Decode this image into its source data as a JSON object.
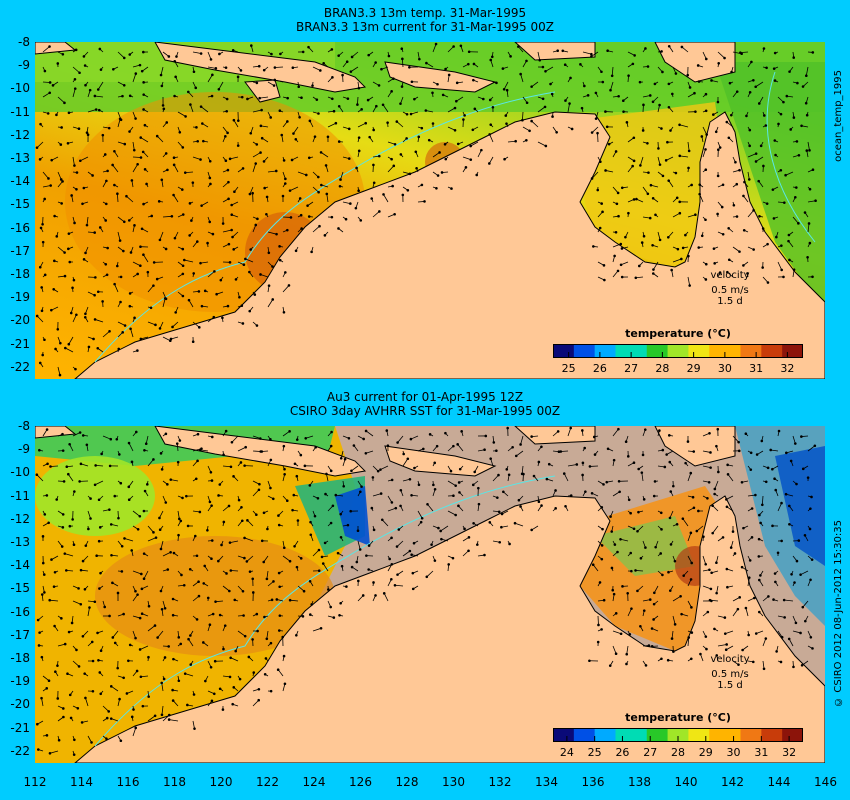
{
  "top_panel": {
    "title_line1": "BRAN3.3 13m temp. 31-Mar-1995",
    "title_line2": "BRAN3.3 13m current for 31-Mar-1995 00Z",
    "side_label": "ocean_temp_1995",
    "colorbar": {
      "title": "temperature (°C)",
      "ticks": [
        "25",
        "26",
        "27",
        "28",
        "29",
        "30",
        "31",
        "32"
      ]
    },
    "velocity": {
      "label": "velocity",
      "speed": "0.5 m/s",
      "time": "1.5 d"
    }
  },
  "bottom_panel": {
    "title_line1": "Au3 current for 01-Apr-1995 12Z",
    "title_line2": "CSIRO 3day AVHRR SST for 31-Mar-1995 00Z",
    "side_label": "© CSIRO 2012  08-Jun-2012 15:30:35",
    "colorbar": {
      "title": "temperature (°C)",
      "ticks": [
        "24",
        "25",
        "26",
        "27",
        "28",
        "29",
        "30",
        "31",
        "32"
      ]
    },
    "velocity": {
      "label": "velocity",
      "speed": "0.5 m/s",
      "time": "1.5 d"
    }
  },
  "y_axis_labels": [
    "-8",
    "-9",
    "-10",
    "-11",
    "-12",
    "-13",
    "-14",
    "-15",
    "-16",
    "-17",
    "-18",
    "-19",
    "-20",
    "-21",
    "-22"
  ],
  "x_axis_labels": [
    "112",
    "114",
    "116",
    "118",
    "120",
    "122",
    "124",
    "126",
    "128",
    "130",
    "132",
    "134",
    "136",
    "138",
    "140",
    "142",
    "144",
    "146"
  ],
  "colors": {
    "background": "#00ccff",
    "land": "#ffc896",
    "no_data": "#c8aa96",
    "scale": [
      "#0a0a78",
      "#0050e6",
      "#00aaff",
      "#00dcb4",
      "#28c828",
      "#a0e628",
      "#f0e614",
      "#ffb400",
      "#f07814",
      "#c83c0a",
      "#8c140a"
    ]
  }
}
